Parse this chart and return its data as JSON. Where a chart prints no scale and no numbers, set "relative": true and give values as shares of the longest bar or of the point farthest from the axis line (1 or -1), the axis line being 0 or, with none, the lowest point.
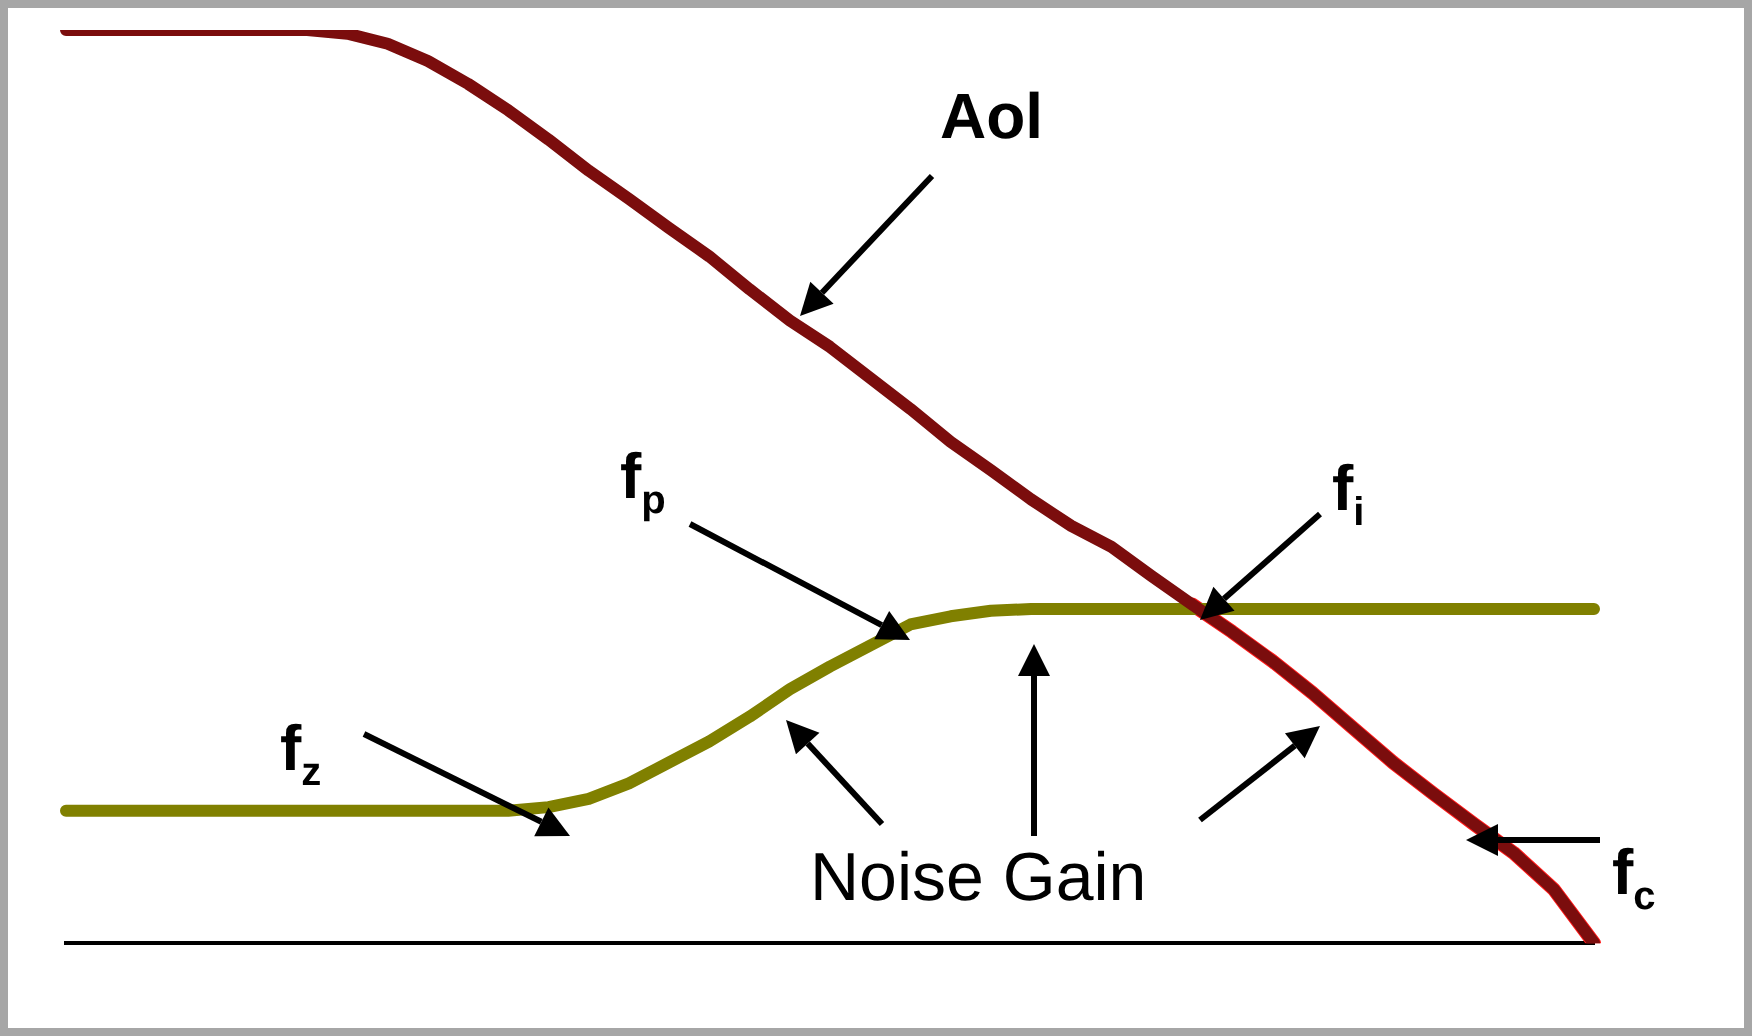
{
  "chart_data": {
    "type": "line",
    "relative": true,
    "categories": [
      null,
      null,
      null,
      null,
      null,
      null,
      null,
      null,
      null,
      null,
      null,
      null,
      null,
      null,
      null,
      null,
      null,
      null,
      null,
      null,
      null,
      null,
      null,
      null,
      null,
      null,
      null,
      null,
      null,
      null,
      null,
      null,
      null,
      null,
      null,
      null,
      null,
      null,
      null
    ],
    "series": [
      {
        "color": "#7b0d0d",
        "values": [
          1,
          1,
          1,
          1,
          1,
          1,
          1,
          0.996,
          0.985,
          0.966,
          0.941,
          0.912,
          0.88,
          0.846,
          0.815,
          0.783,
          0.752,
          0.716,
          0.682,
          0.653,
          0.619,
          0.585,
          0.549,
          0.518,
          0.486,
          0.457,
          0.434,
          0.402,
          0.371,
          0.341,
          0.309,
          0.274,
          0.236,
          0.198,
          0.164,
          0.131,
          0.099,
          0.059,
          0
        ]
      },
      {
        "color": "#808000",
        "values": [
          0.145,
          0.145,
          0.145,
          0.145,
          0.145,
          0.145,
          0.145,
          0.145,
          0.145,
          0.145,
          0.145,
          0.145,
          0.149,
          0.158,
          0.175,
          0.198,
          0.221,
          0.248,
          0.278,
          0.303,
          0.326,
          0.349,
          0.358,
          0.364,
          0.366,
          0.366,
          0.366,
          0.366,
          0.366,
          0.366,
          0.366,
          0.366,
          0.366,
          0.366,
          0.366,
          0.366,
          0.366,
          0.366,
          0.366
        ]
      },
      {
        "color": "#ff1a1a",
        "values": [
          null,
          null,
          null,
          null,
          null,
          null,
          null,
          null,
          null,
          null,
          null,
          null,
          null,
          null,
          null,
          null,
          null,
          null,
          null,
          null,
          null,
          null,
          null,
          null,
          null,
          null,
          null,
          null,
          0.371,
          0.341,
          0.309,
          0.274,
          0.236,
          0.198,
          0.164,
          0.131,
          0.099,
          0.059,
          0
        ]
      }
    ],
    "annotations": [
      "Aol",
      "f$_{p}$",
      "f$_{i}$",
      "f$_{z}$",
      "f$_{c}$",
      "Noise Gain"
    ],
    "grid": false,
    "legend": false,
    "marker": "none",
    "line_style": "solid"
  }
}
